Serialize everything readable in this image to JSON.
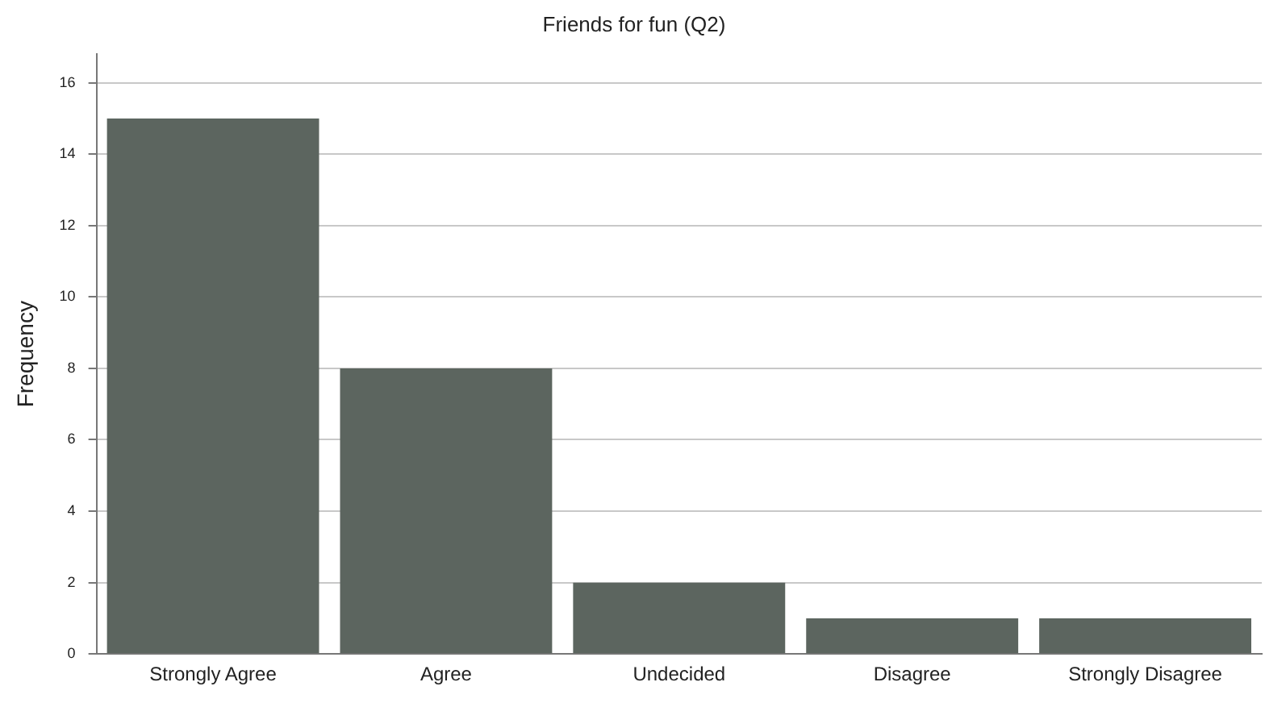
{
  "chart_data": {
    "type": "bar",
    "title": "Friends for fun (Q2)",
    "ylabel": "Frequency",
    "categories": [
      "Strongly Agree",
      "Agree",
      "Undecided",
      "Disagree",
      "Strongly Disagree"
    ],
    "values": [
      15,
      8,
      2,
      1,
      1
    ],
    "color": "#5c655f",
    "ylim": [
      0,
      16.8
    ],
    "yticks": [
      0,
      2,
      4,
      6,
      8,
      10,
      12,
      14,
      16
    ],
    "grid": "y"
  }
}
